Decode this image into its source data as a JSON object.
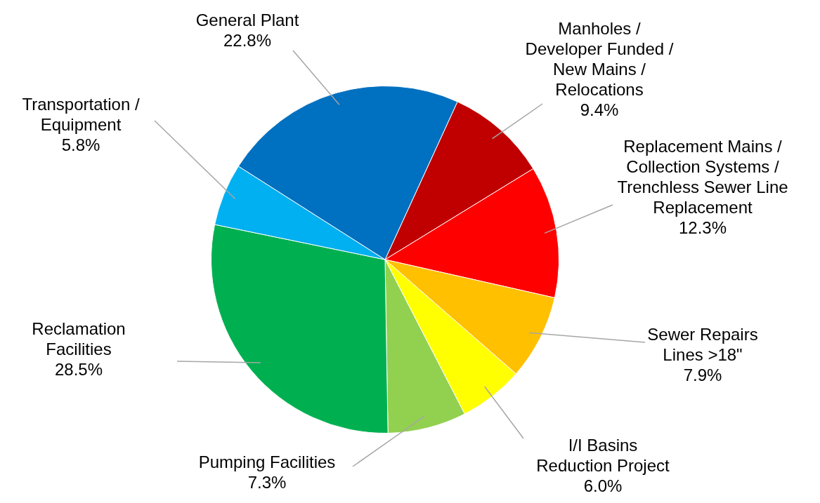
{
  "chart_data": {
    "type": "pie",
    "categories": [
      "Manholes / Developer Funded / New Mains / Relocations",
      "Replacement Mains / Collection Systems / Trenchless Sewer Line Replacement",
      "Sewer Repairs Lines >18\"",
      "I/I Basins Reduction Project",
      "Pumping Facilities",
      "Reclamation Facilities",
      "Transportation / Equipment",
      "General Plant"
    ],
    "values": [
      9.4,
      12.3,
      7.9,
      6.0,
      7.3,
      28.5,
      5.8,
      22.8
    ],
    "value_labels": [
      "9.4%",
      "12.3%",
      "7.9%",
      "6.0%",
      "7.3%",
      "28.5%",
      "5.8%",
      "22.8%"
    ],
    "colors": [
      "#c00000",
      "#ff0000",
      "#ffc000",
      "#ffff00",
      "#92d050",
      "#00b050",
      "#00b0f0",
      "#0070c0"
    ],
    "legend": false
  }
}
